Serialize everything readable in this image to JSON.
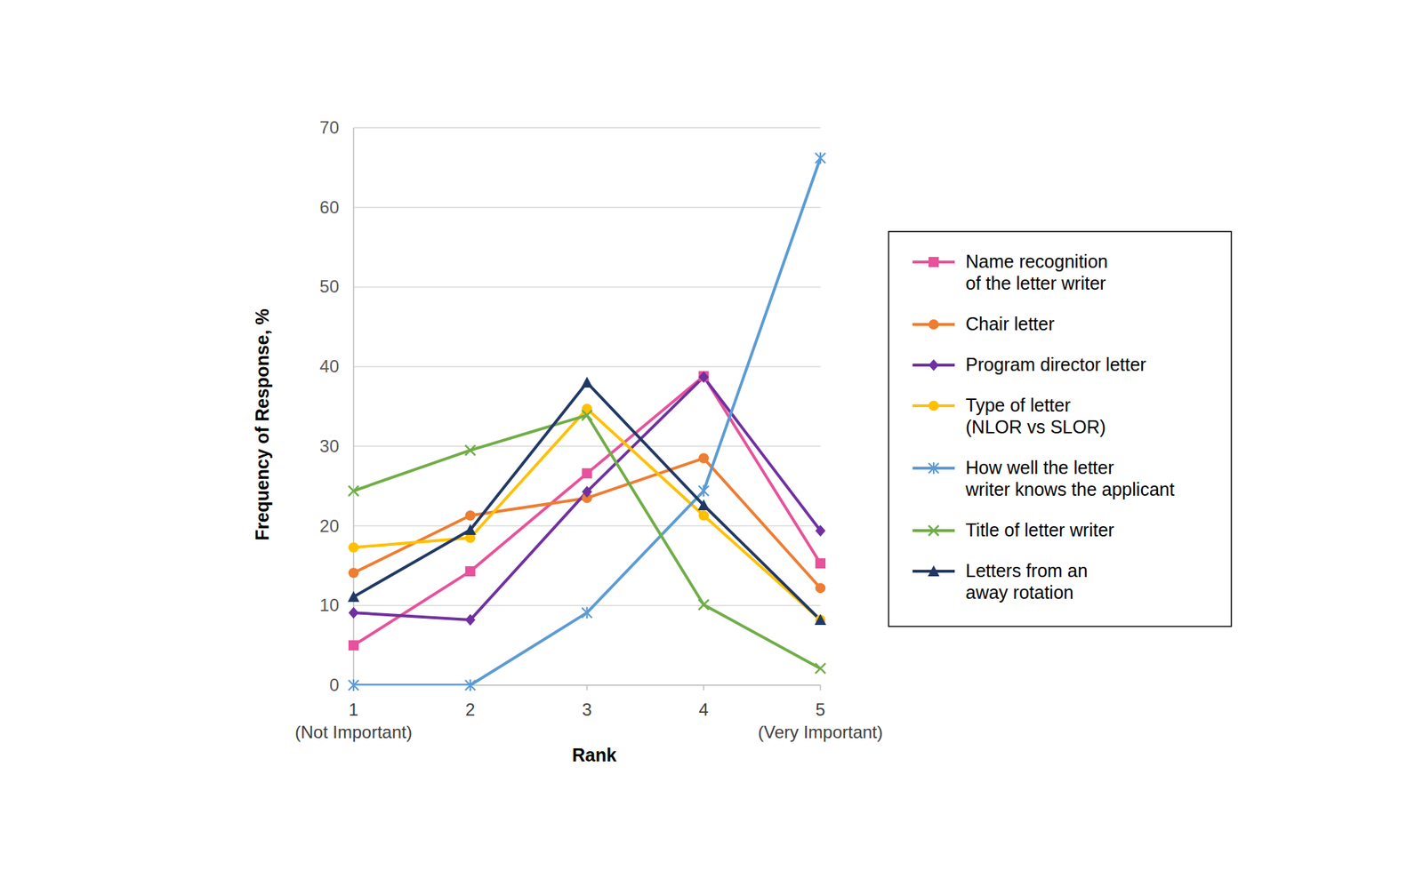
{
  "chart_data": {
    "type": "line",
    "x_label": "Rank",
    "y_label": "Frequency of Response, %",
    "categories": [
      "1",
      "2",
      "3",
      "4",
      "5"
    ],
    "annotations": [
      {
        "text": "(Not Important)",
        "category": "1"
      },
      {
        "text": "(Very Important)",
        "category": "5"
      }
    ],
    "ylim": [
      0,
      70
    ],
    "yticks": [
      0,
      10,
      20,
      30,
      40,
      50,
      60,
      70
    ],
    "grid": true,
    "legend": "right",
    "series": [
      {
        "name": "Name recognition\nof the letter writer",
        "color": "#e8519b",
        "marker": "square",
        "values": [
          5.0,
          14.3,
          26.6,
          38.8,
          15.3
        ]
      },
      {
        "name": "Chair letter",
        "color": "#ee7d31",
        "marker": "circle",
        "values": [
          14.1,
          21.3,
          23.5,
          28.5,
          12.2
        ]
      },
      {
        "name": "Program director letter",
        "color": "#7030a0",
        "marker": "diamond",
        "values": [
          9.1,
          8.2,
          24.3,
          38.7,
          19.4
        ]
      },
      {
        "name": "Type of letter\n(NLOR vs SLOR)",
        "color": "#ffc000",
        "marker": "circle",
        "values": [
          17.3,
          18.5,
          34.7,
          21.3,
          8.2
        ]
      },
      {
        "name": "How well the letter\nwriter knows the applicant",
        "color": "#5b9bd5",
        "marker": "asterisk",
        "values": [
          0,
          0,
          9.1,
          24.4,
          66.2
        ]
      },
      {
        "name": "Title of letter writer",
        "color": "#70ad47",
        "marker": "x",
        "values": [
          24.4,
          29.5,
          33.9,
          10.1,
          2.1
        ]
      },
      {
        "name": "Letters from an\naway rotation",
        "color": "#203864",
        "marker": "triangle",
        "values": [
          11.1,
          19.5,
          38.0,
          22.6,
          8.2
        ]
      }
    ]
  }
}
